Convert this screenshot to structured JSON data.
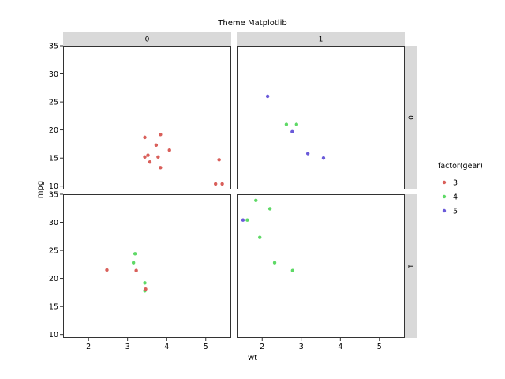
{
  "chart_data": {
    "type": "scatter",
    "title": "Theme Matplotlib",
    "xlabel": "wt",
    "ylabel": "mpg",
    "xlim": [
      1.35,
      5.65
    ],
    "ylim": [
      9.4,
      35.0
    ],
    "x_ticks": [
      2,
      3,
      4,
      5
    ],
    "y_ticks": [
      10,
      15,
      20,
      25,
      30,
      35
    ],
    "grid": false,
    "facet_cols": [
      "0",
      "1"
    ],
    "facet_rows": [
      "0",
      "1"
    ],
    "legend": {
      "title": "factor(gear)",
      "placement": "right",
      "entries": [
        {
          "label": "3",
          "color": "#d95f5a"
        },
        {
          "label": "4",
          "color": "#5ed966"
        },
        {
          "label": "5",
          "color": "#6a5ad9"
        }
      ]
    },
    "panels": [
      {
        "row": "0",
        "col": "0",
        "points": [
          {
            "x": 3.44,
            "y": 18.7,
            "g": "3"
          },
          {
            "x": 3.84,
            "y": 19.2,
            "g": "3"
          },
          {
            "x": 3.73,
            "y": 17.3,
            "g": "3"
          },
          {
            "x": 4.07,
            "y": 16.4,
            "g": "3"
          },
          {
            "x": 3.44,
            "y": 15.2,
            "g": "3"
          },
          {
            "x": 3.52,
            "y": 15.5,
            "g": "3"
          },
          {
            "x": 3.78,
            "y": 15.2,
            "g": "3"
          },
          {
            "x": 3.57,
            "y": 14.3,
            "g": "3"
          },
          {
            "x": 3.84,
            "y": 13.3,
            "g": "3"
          },
          {
            "x": 5.34,
            "y": 14.7,
            "g": "3"
          },
          {
            "x": 5.25,
            "y": 10.4,
            "g": "3"
          },
          {
            "x": 5.42,
            "y": 10.4,
            "g": "3"
          }
        ]
      },
      {
        "row": "0",
        "col": "1",
        "points": [
          {
            "x": 2.14,
            "y": 26.0,
            "g": "5"
          },
          {
            "x": 2.62,
            "y": 21.0,
            "g": "4"
          },
          {
            "x": 2.88,
            "y": 21.0,
            "g": "4"
          },
          {
            "x": 2.77,
            "y": 19.7,
            "g": "5"
          },
          {
            "x": 3.17,
            "y": 15.8,
            "g": "5"
          },
          {
            "x": 3.57,
            "y": 15.0,
            "g": "5"
          }
        ]
      },
      {
        "row": "1",
        "col": "0",
        "points": [
          {
            "x": 2.47,
            "y": 21.5,
            "g": "3"
          },
          {
            "x": 3.22,
            "y": 21.4,
            "g": "3"
          },
          {
            "x": 3.19,
            "y": 24.4,
            "g": "4"
          },
          {
            "x": 3.15,
            "y": 22.8,
            "g": "4"
          },
          {
            "x": 3.44,
            "y": 19.2,
            "g": "4"
          },
          {
            "x": 3.44,
            "y": 17.8,
            "g": "4"
          },
          {
            "x": 3.46,
            "y": 18.1,
            "g": "3"
          }
        ]
      },
      {
        "row": "1",
        "col": "1",
        "points": [
          {
            "x": 1.84,
            "y": 33.9,
            "g": "4"
          },
          {
            "x": 2.2,
            "y": 32.4,
            "g": "4"
          },
          {
            "x": 1.51,
            "y": 30.4,
            "g": "5"
          },
          {
            "x": 1.62,
            "y": 30.4,
            "g": "4"
          },
          {
            "x": 1.94,
            "y": 27.3,
            "g": "4"
          },
          {
            "x": 2.32,
            "y": 22.8,
            "g": "4"
          },
          {
            "x": 2.78,
            "y": 21.4,
            "g": "4"
          }
        ]
      }
    ]
  }
}
